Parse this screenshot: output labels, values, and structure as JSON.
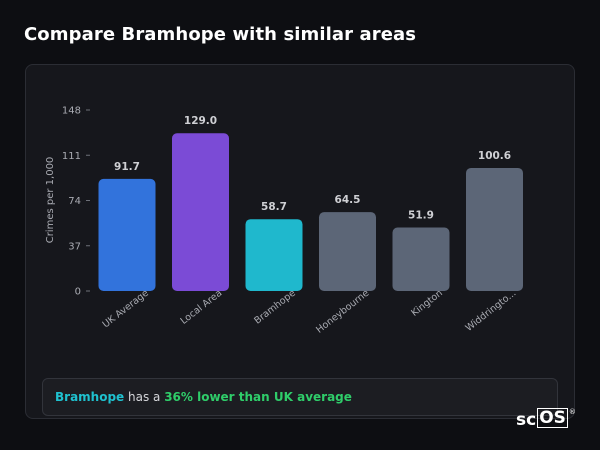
{
  "page": {
    "title": "Compare Bramhope with similar areas"
  },
  "summary": {
    "area": "Bramhope",
    "middle": " has a ",
    "highlight": "36% lower than UK average"
  },
  "logo": {
    "text_main": "sc",
    "text_boxed": "OS",
    "registered": "®"
  },
  "colors": {
    "background": "#0d0e12",
    "card": "#16171c",
    "uk_average": "#3273dc",
    "local_area": "#7b4bd6",
    "highlight_area": "#1fb8cd",
    "other_areas": "#5c6677",
    "area_name_text": "#1fc1cf",
    "highlight_text": "#2fcd6a"
  },
  "chart_data": {
    "type": "bar",
    "title": "",
    "xlabel": "",
    "ylabel": "Crimes per 1,000",
    "ylim": [
      0,
      148
    ],
    "yticks": [
      0,
      37,
      74,
      111,
      148
    ],
    "grid": false,
    "categories": [
      "UK Average",
      "Local Area",
      "Bramhope",
      "Honeybourne",
      "Kington",
      "Widdringto..."
    ],
    "values": [
      91.7,
      129.0,
      58.7,
      64.5,
      51.9,
      100.6
    ],
    "value_labels": [
      "91.7",
      "129.0",
      "58.7",
      "64.5",
      "51.9",
      "100.6"
    ],
    "bar_colors": [
      "#3273dc",
      "#7b4bd6",
      "#1fb8cd",
      "#5c6677",
      "#5c6677",
      "#5c6677"
    ]
  }
}
